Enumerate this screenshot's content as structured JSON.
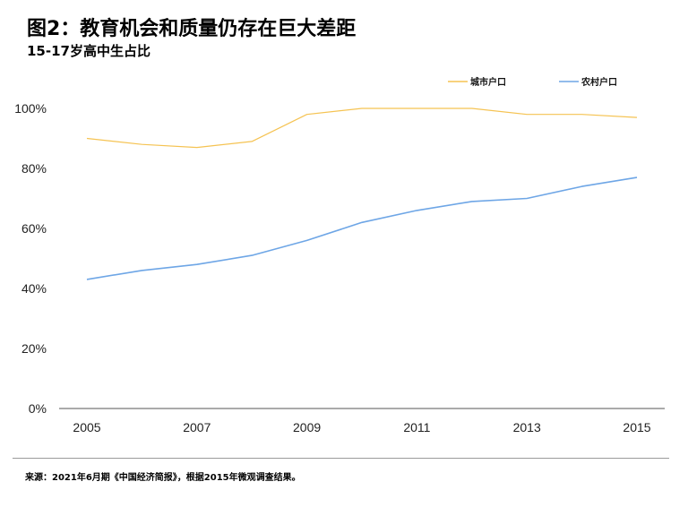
{
  "header": {
    "title": "图2：教育机会和质量仍存在巨大差距",
    "subtitle": "15-17岁高中生占比"
  },
  "footer": {
    "source": "来源：2021年6月期《中国经济简报》，根据2015年微观调查结果。"
  },
  "colors": {
    "urban": "#f5c352",
    "rural": "#6ea6e6",
    "axis": "#555555"
  },
  "chart_data": {
    "type": "line",
    "x": [
      2005,
      2006,
      2007,
      2008,
      2009,
      2010,
      2011,
      2012,
      2013,
      2014,
      2015
    ],
    "x_tick_labels": [
      "2005",
      "2007",
      "2009",
      "2011",
      "2013",
      "2015"
    ],
    "x_tick_values": [
      2005,
      2007,
      2009,
      2011,
      2013,
      2015
    ],
    "y_tick_labels": [
      "0%",
      "20%",
      "40%",
      "60%",
      "80%",
      "100%"
    ],
    "y_tick_values": [
      0,
      20,
      40,
      60,
      80,
      100
    ],
    "ylim": [
      0,
      100
    ],
    "xlim": [
      2005,
      2015
    ],
    "legend_position": "top-right",
    "grid": false,
    "series": [
      {
        "name": "城市户口",
        "color": "#f5c352",
        "values": [
          90,
          88,
          87,
          89,
          98,
          100,
          100,
          100,
          98,
          98,
          97
        ]
      },
      {
        "name": "农村户口",
        "color": "#6ea6e6",
        "values": [
          43,
          46,
          48,
          51,
          56,
          62,
          66,
          69,
          70,
          74,
          77
        ]
      }
    ]
  }
}
